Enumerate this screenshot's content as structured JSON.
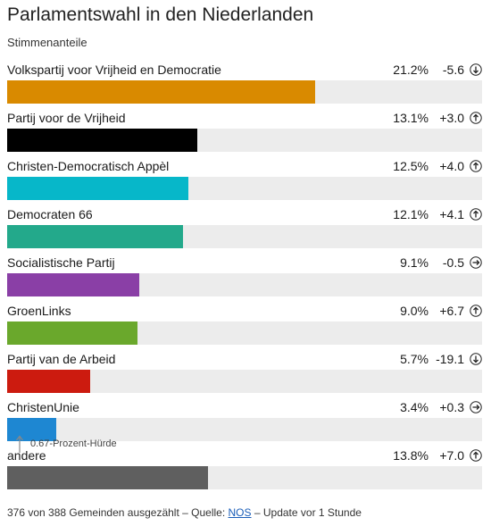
{
  "chart_data": {
    "type": "bar",
    "title": "Parlamentswahl in den Niederlanden",
    "subtitle": "Stimmenanteile",
    "xlim": [
      0,
      32.7
    ],
    "categories": [
      "Volkspartij voor Vrijheid en Democratie",
      "Partij voor de Vrijheid",
      "Christen-Democratisch Appèl",
      "Democraten 66",
      "Socialistische Partij",
      "GroenLinks",
      "Partij van de Arbeid",
      "ChristenUnie",
      "andere"
    ],
    "series": [
      {
        "name": "Stimmenanteile",
        "values": [
          21.2,
          13.1,
          12.5,
          12.1,
          9.1,
          9.0,
          5.7,
          3.4,
          13.8
        ]
      }
    ],
    "parties": [
      {
        "name": "Volkspartij voor Vrijheid en Democratie",
        "share": 21.2,
        "share_label": "21.2%",
        "change_label": "-5.6",
        "trend": "down",
        "color": "#d98a00"
      },
      {
        "name": "Partij voor de Vrijheid",
        "share": 13.1,
        "share_label": "13.1%",
        "change_label": "+3.0",
        "trend": "up",
        "color": "#000000"
      },
      {
        "name": "Christen-Democratisch Appèl",
        "share": 12.5,
        "share_label": "12.5%",
        "change_label": "+4.0",
        "trend": "up",
        "color": "#07b7c9"
      },
      {
        "name": "Democraten 66",
        "share": 12.1,
        "share_label": "12.1%",
        "change_label": "+4.1",
        "trend": "up",
        "color": "#23a98b"
      },
      {
        "name": "Socialistische Partij",
        "share": 9.1,
        "share_label": "9.1%",
        "change_label": "-0.5",
        "trend": "flat",
        "color": "#8a3fa6"
      },
      {
        "name": "GroenLinks",
        "share": 9.0,
        "share_label": "9.0%",
        "change_label": "+6.7",
        "trend": "up",
        "color": "#6aa82c"
      },
      {
        "name": "Partij van de Arbeid",
        "share": 5.7,
        "share_label": "5.7%",
        "change_label": "-19.1",
        "trend": "down",
        "color": "#cc1b0f"
      },
      {
        "name": "ChristenUnie",
        "share": 3.4,
        "share_label": "3.4%",
        "change_label": "+0.3",
        "trend": "flat",
        "color": "#1e87d2"
      },
      {
        "name": "andere",
        "share": 13.8,
        "share_label": "13.8%",
        "change_label": "+7.0",
        "trend": "up",
        "color": "#5f5f5f"
      }
    ],
    "threshold": {
      "value": 0.67,
      "label": "0.67-Prozent-Hürde"
    }
  },
  "footer": {
    "prefix": "376 von 388 Gemeinden ausgezählt – Quelle: ",
    "source_link": "NOS",
    "suffix": " – Update vor 1 Stunde"
  },
  "colors": {
    "track": "#ececec",
    "link": "#1a5db8"
  }
}
